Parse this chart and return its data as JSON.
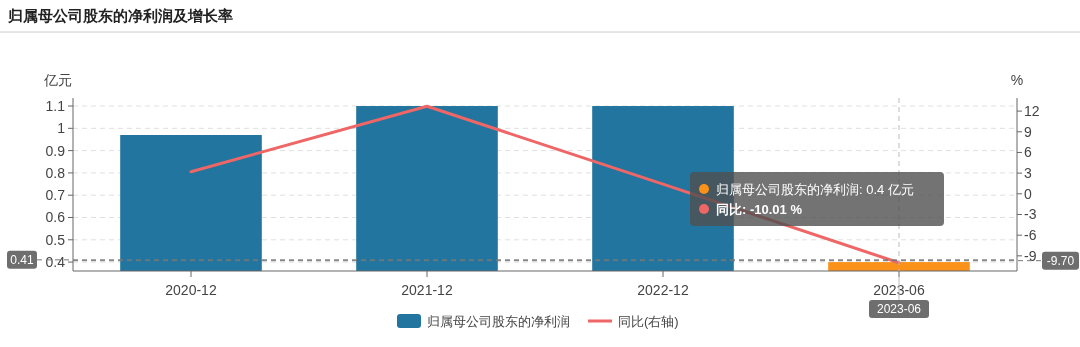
{
  "chart_data": {
    "type": "bar",
    "title": "归属母公司股东的净利润及增长率",
    "ylabel": "亿元",
    "y2label": "%",
    "categories": [
      "2020-12",
      "2021-12",
      "2022-12",
      "2023-06"
    ],
    "series": [
      {
        "name": "归属母公司股东的净利润",
        "color": "#21759f",
        "colors": [
          "#21759f",
          "#21759f",
          "#21759f",
          "#fa9219"
        ],
        "values": [
          0.97,
          1.1,
          1.1,
          0.4
        ]
      },
      {
        "name": "同比(右轴)",
        "type": "line",
        "axis": "y2",
        "color": "#ee6666",
        "values": [
          3.2,
          12.7,
          1.4,
          -10.01
        ]
      }
    ],
    "ylim": [
      0.36,
      1.136
    ],
    "yticks": [
      0.4,
      0.5,
      0.6,
      0.7,
      0.8,
      0.9,
      1,
      1.1
    ],
    "y2lim": [
      -11.2,
      13.9
    ],
    "y2ticks": [
      -9,
      -6,
      -3,
      0,
      3,
      6,
      9,
      12
    ],
    "ref_lines": [
      {
        "axis": "y",
        "value": 0.41,
        "label": "0.41",
        "color": "#777777",
        "line_style": "dashed"
      },
      {
        "axis": "y2",
        "value": -9.7,
        "label": "-9.70",
        "color": "#777777",
        "line_style": "dashed"
      },
      {
        "axis": "x",
        "value": "2023-06",
        "label": "2023-06",
        "color": "#bbbbbb",
        "line_style": "dashed"
      }
    ],
    "annotations": [
      "归属母公司股东的净利润: 0.4  亿元",
      "同比: -10.01  %"
    ],
    "grid": "y",
    "legend": "bottom",
    "marker": "none",
    "line_style": "solid"
  }
}
